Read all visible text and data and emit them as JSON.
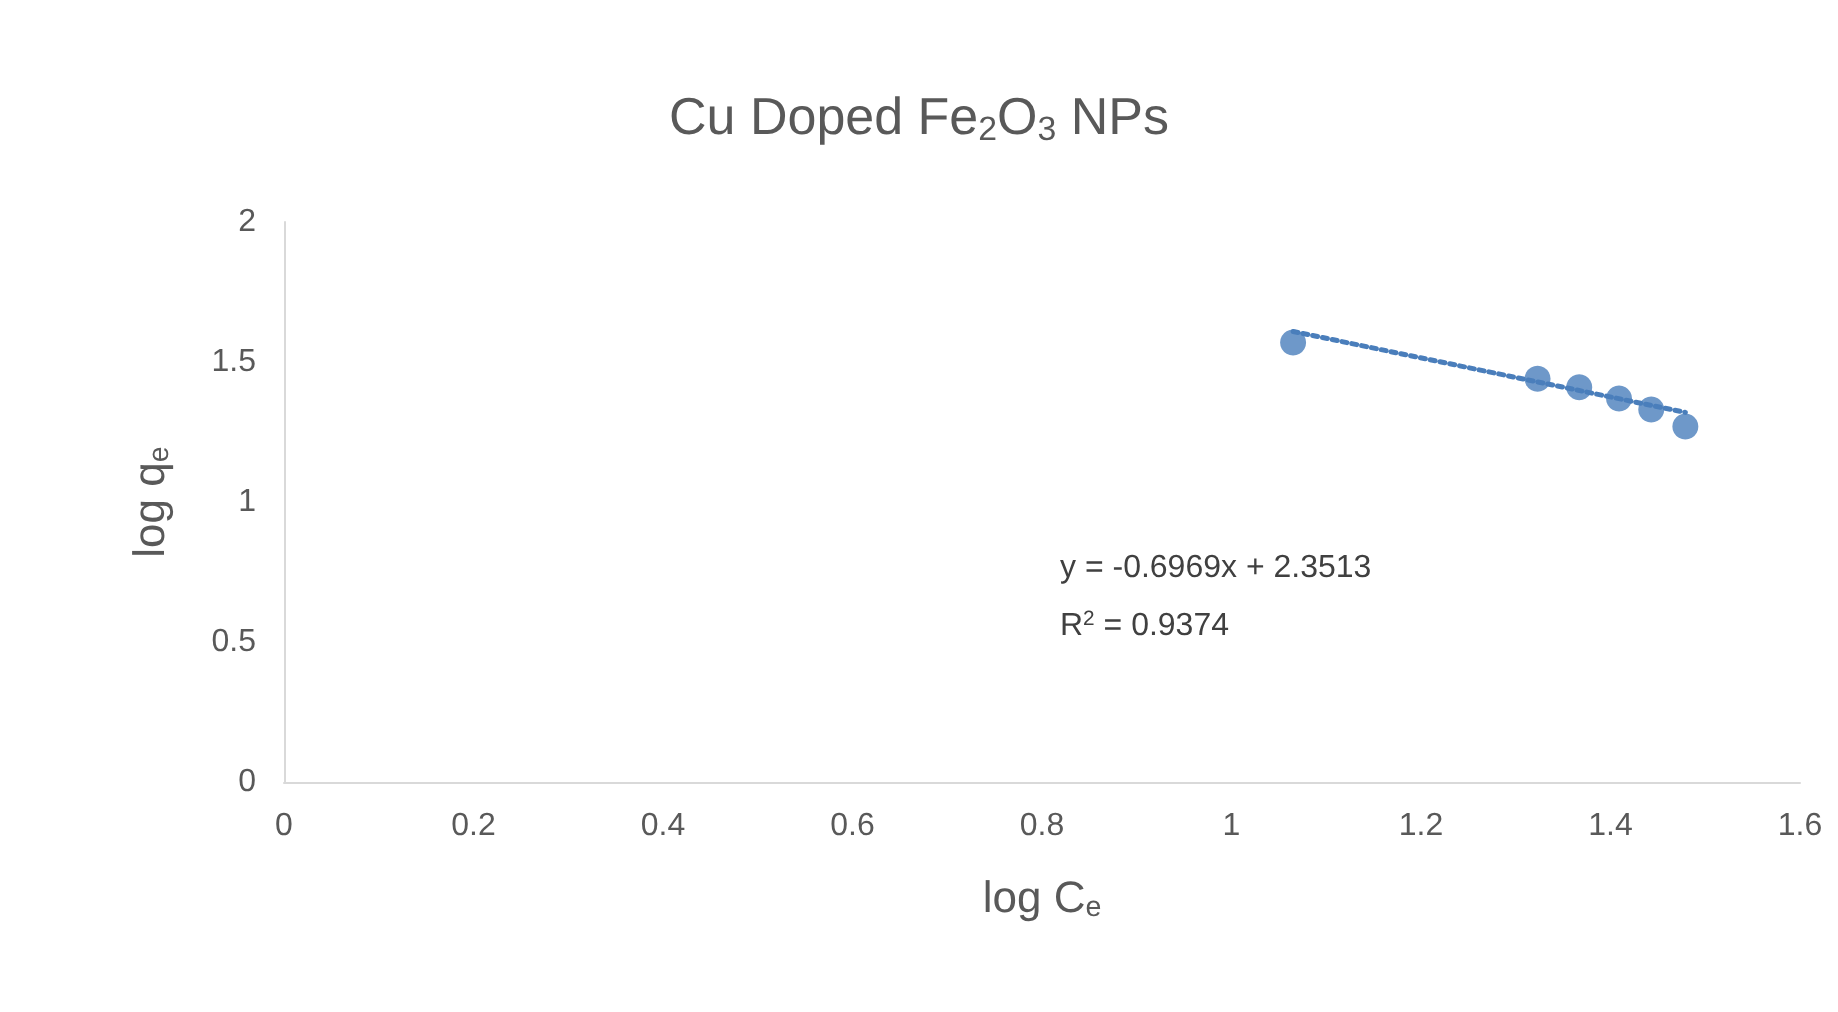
{
  "chart_data": {
    "type": "scatter",
    "title": "Cu Doped Fe$_{2}$O$_{3}$ NPs",
    "xlabel": "log C$_{e}$",
    "ylabel": "log q$_{e}$",
    "x": [
      1.065,
      1.323,
      1.367,
      1.409,
      1.443,
      1.479
    ],
    "series": [
      {
        "color": "#4a7ebb",
        "values": [
          1.57,
          1.44,
          1.41,
          1.37,
          1.33,
          1.27
        ],
        "marker": "circle"
      },
      {
        "type": "line",
        "x": [
          1.065,
          1.479
        ],
        "values": [
          1.609,
          1.32
        ],
        "color": "#4a7ebb",
        "line_style": "dotted",
        "marker": "none"
      }
    ],
    "xlim": [
      0,
      1.6
    ],
    "xticks": [
      0,
      0.2,
      0.4,
      0.6,
      0.8,
      1,
      1.2,
      1.4,
      1.6
    ],
    "ylim": [
      0,
      2
    ],
    "yticks": [
      0,
      0.5,
      1,
      1.5,
      2
    ],
    "annotations": [
      "y = -0.6969x + 2.3513",
      "R$^{2}$ = 0.9374"
    ],
    "grid": false
  }
}
